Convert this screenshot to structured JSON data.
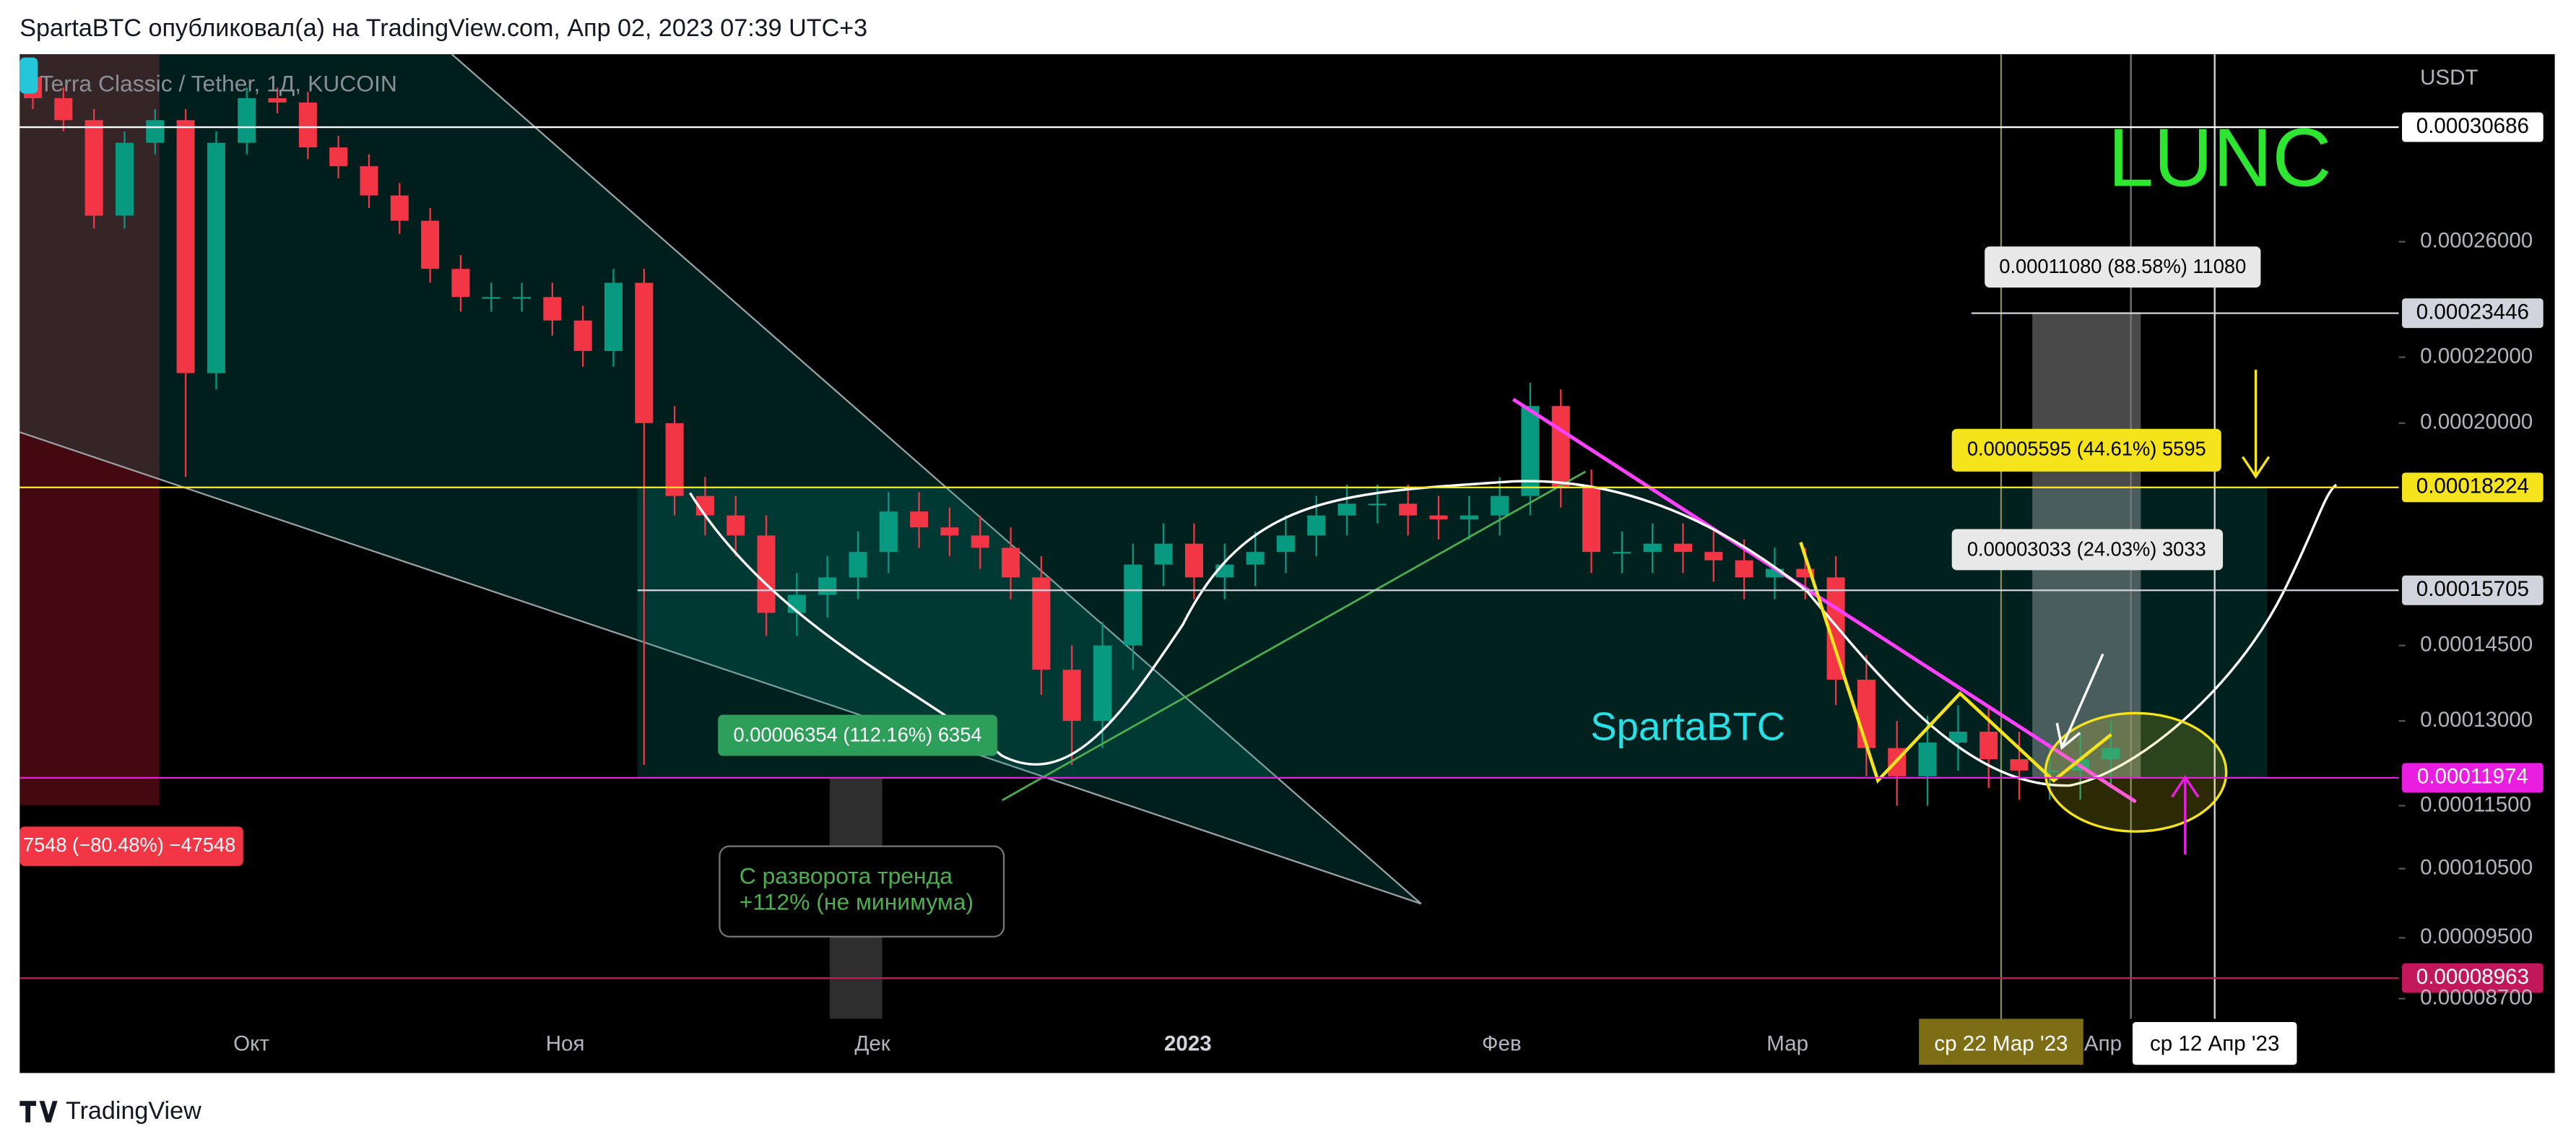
{
  "header": "SpartaBTC опубликовал(а) на TradingView.com, Апр 02, 2023 07:39 UTC+3",
  "footer": "TradingView",
  "chart_data": {
    "type": "candlestick",
    "title": "Terra Classic / Tether, 1Д, KUCOIN",
    "y_label": "USDT",
    "log_scale": true,
    "up_color": "#089981",
    "down_color": "#f23645",
    "ylim": [
      8.45e-05,
      0.000341
    ],
    "yticks": [
      {
        "value": 8.7e-05,
        "label": "0.00008700"
      },
      {
        "value": 9.5e-05,
        "label": "0.00009500"
      },
      {
        "value": 0.000105,
        "label": "0.00010500"
      },
      {
        "value": 0.000115,
        "label": "0.00011500"
      },
      {
        "value": 0.00013,
        "label": "0.00013000"
      },
      {
        "value": 0.000145,
        "label": "0.00014500"
      },
      {
        "value": 0.0002,
        "label": "0.00020000"
      },
      {
        "value": 0.00022,
        "label": "0.00022000"
      },
      {
        "value": 0.00026,
        "label": "0.00026000"
      }
    ],
    "x_labels": [
      "Окт",
      "Ноя",
      "Дек",
      "2023",
      "Фев",
      "Мар",
      "Апр"
    ],
    "open": [
      0.00033,
      0.00032,
      0.00031,
      0.00027,
      0.0003,
      0.00031,
      0.000215,
      0.0003,
      0.00032,
      0.000318,
      0.000298,
      0.00029,
      0.000278,
      0.000268,
      0.00025,
      0.00024,
      0.00024,
      0.00024,
      0.000232,
      0.000222,
      0.000245,
      0.0002,
      0.00018,
      0.000175,
      0.00017,
      0.000152,
      0.000156,
      0.00016,
      0.000166,
      0.000176,
      0.000172,
      0.00017,
      0.000167,
      0.00016,
      0.00014,
      0.00013,
      0.000145,
      0.000163,
      0.000168,
      0.00016,
      0.000163,
      0.000166,
      0.00017,
      0.000175,
      0.000178,
      0.000178,
      0.000175,
      0.000174,
      0.000175,
      0.00018,
      0.000205,
      0.000182,
      0.000166,
      0.000166,
      0.000168,
      0.000166,
      0.000164,
      0.00016,
      0.000162,
      0.00016,
      0.000138,
      0.000125,
      0.00012,
      0.000126,
      0.000128,
      0.000123,
      0.000121,
      0.000121,
      0.000123
    ],
    "high": [
      0.000335,
      0.000325,
      0.000315,
      0.000305,
      0.000315,
      0.000315,
      0.000305,
      0.000325,
      0.000325,
      0.000323,
      0.000303,
      0.000295,
      0.000283,
      0.000273,
      0.000255,
      0.000245,
      0.000245,
      0.000245,
      0.000237,
      0.00025,
      0.00025,
      0.000205,
      0.000185,
      0.00018,
      0.000175,
      0.000161,
      0.000165,
      0.000171,
      0.000181,
      0.000181,
      0.000177,
      0.000175,
      0.000172,
      0.000165,
      0.000145,
      0.00015,
      0.000168,
      0.000173,
      0.000173,
      0.000168,
      0.000171,
      0.000175,
      0.00018,
      0.000183,
      0.000183,
      0.000183,
      0.00018,
      0.00018,
      0.000185,
      0.000212,
      0.00021,
      0.000187,
      0.000171,
      0.000173,
      0.000173,
      0.000171,
      0.000169,
      0.000167,
      0.000167,
      0.000165,
      0.000143,
      0.00013,
      0.000131,
      0.000133,
      0.000133,
      0.000128,
      0.000126,
      0.000128,
      0.00013
    ],
    "low": [
      0.000315,
      0.000305,
      0.000265,
      0.000265,
      0.000295,
      0.000185,
      0.00021,
      0.000295,
      0.000313,
      0.000293,
      0.000285,
      0.000273,
      0.000263,
      0.000245,
      0.000235,
      0.000235,
      0.000235,
      0.000227,
      0.000217,
      0.000217,
      0.000122,
      0.000175,
      0.00017,
      0.000165,
      0.000147,
      0.000147,
      0.000151,
      0.000155,
      0.000161,
      0.000167,
      0.000165,
      0.000162,
      0.000155,
      0.000135,
      0.000122,
      0.000125,
      0.00014,
      0.000158,
      0.000155,
      0.000155,
      0.000158,
      0.000161,
      0.000165,
      0.00017,
      0.000173,
      0.00017,
      0.000169,
      0.000169,
      0.00017,
      0.000175,
      0.000177,
      0.000161,
      0.000161,
      0.000161,
      0.000161,
      0.000159,
      0.000155,
      0.000155,
      0.000155,
      0.000133,
      0.00012,
      0.000115,
      0.000115,
      0.000121,
      0.000118,
      0.000116,
      0.000116,
      0.000116,
      0.000118
    ],
    "close": [
      0.00032,
      0.00031,
      0.00027,
      0.0003,
      0.00031,
      0.000215,
      0.0003,
      0.00032,
      0.000318,
      0.000298,
      0.00029,
      0.000278,
      0.000268,
      0.00025,
      0.00024,
      0.00024,
      0.00024,
      0.000232,
      0.000222,
      0.000245,
      0.0002,
      0.00018,
      0.000175,
      0.00017,
      0.000152,
      0.000156,
      0.00016,
      0.000166,
      0.000176,
      0.000172,
      0.00017,
      0.000167,
      0.00016,
      0.00014,
      0.00013,
      0.000145,
      0.000163,
      0.000168,
      0.00016,
      0.000163,
      0.000166,
      0.00017,
      0.000175,
      0.000178,
      0.000178,
      0.000175,
      0.000174,
      0.000175,
      0.00018,
      0.000205,
      0.000182,
      0.000166,
      0.000166,
      0.000168,
      0.000166,
      0.000164,
      0.00016,
      0.000162,
      0.00016,
      0.000138,
      0.000125,
      0.00012,
      0.000126,
      0.000128,
      0.000123,
      0.000121,
      0.000121,
      0.000123,
      0.000125
    ],
    "price_lines": [
      {
        "value": 0.00030686,
        "color": "#ffffff",
        "text_color": "#000000"
      },
      {
        "value": 0.00023446,
        "color": "#d1d4dc",
        "text_color": "#000000"
      },
      {
        "value": 0.00018224,
        "color": "#f5e31b",
        "text_color": "#000000"
      },
      {
        "value": 0.00015705,
        "color": "#d1d4dc",
        "text_color": "#000000"
      },
      {
        "value": 0.00011974,
        "color": "#e91ee0",
        "text_color": "#ffffff"
      },
      {
        "value": 8.963e-05,
        "color": "#c2185b",
        "text_color": "#ffffff"
      }
    ],
    "annotations": {
      "ticker": "LUNC",
      "author": "SpartaBTC",
      "measure_top": "0.00011080 (88.58%) 11080",
      "measure_yellow": "0.00005595 (44.61%) 5595",
      "measure_mid": "0.00003033 (24.03%) 3033",
      "measure_green": "0.00006354 (112.16%) 6354",
      "measure_red": "7548 (−80.48%) −47548",
      "callout": [
        "С разворота тренда",
        "+112% (не минимума)"
      ],
      "date_cursor": "ср 22 Мар '23",
      "date_end": "ср 12 Апр '23"
    }
  }
}
